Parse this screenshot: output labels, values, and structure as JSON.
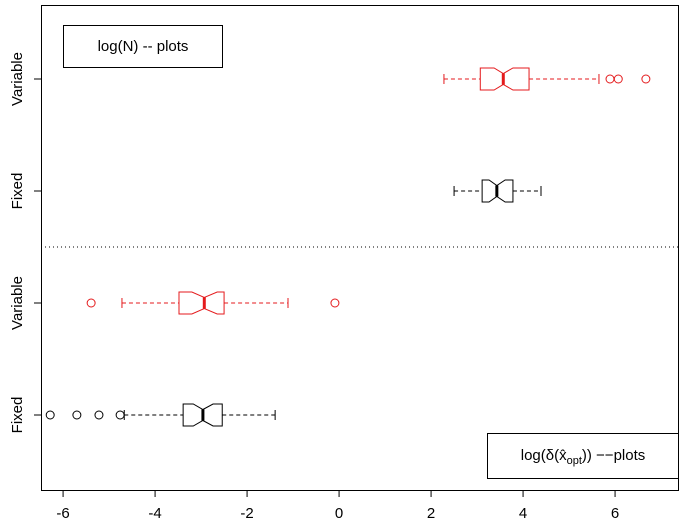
{
  "chart_data": {
    "type": "boxplot",
    "orientation": "horizontal",
    "notch": true,
    "categories": [
      "Fixed",
      "Variable",
      "Fixed",
      "Variable"
    ],
    "boxes": [
      {
        "color": "#000000",
        "whislo": -4.67,
        "q1": -3.39,
        "notch_lo": -3.17,
        "med": -2.96,
        "notch_hi": -2.74,
        "q3": -2.54,
        "whishi": -1.39,
        "outliers": [
          -6.28,
          -5.7,
          -5.22,
          -4.76
        ]
      },
      {
        "color": "#e41a1c",
        "whislo": -4.72,
        "q1": -3.48,
        "notch_lo": -3.2,
        "med": -2.93,
        "notch_hi": -2.65,
        "q3": -2.5,
        "whishi": -1.11,
        "outliers": [
          -5.39,
          -0.09
        ]
      },
      {
        "color": "#000000",
        "whislo": 2.5,
        "q1": 3.11,
        "notch_lo": 3.26,
        "med": 3.43,
        "notch_hi": 3.61,
        "q3": 3.78,
        "whishi": 4.39,
        "outliers": []
      },
      {
        "color": "#e41a1c",
        "whislo": 2.28,
        "q1": 3.07,
        "notch_lo": 3.37,
        "med": 3.57,
        "notch_hi": 3.78,
        "q3": 4.13,
        "whishi": 5.65,
        "outliers": [
          5.89,
          6.07,
          6.67
        ]
      }
    ],
    "xlim": [
      -6.48,
      7.39
    ],
    "xticks": [
      -6,
      -4,
      -2,
      0,
      2,
      4,
      6
    ],
    "legend_top": "log(N) -- plots",
    "legend_bottom": {
      "pre": "log(δ(",
      "var": "x̂",
      "sub": "opt",
      "post": ")) −−plots"
    }
  }
}
